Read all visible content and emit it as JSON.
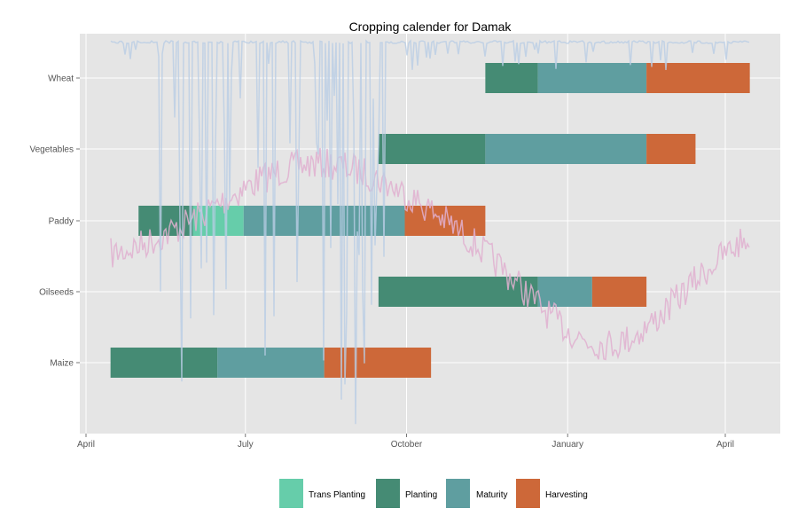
{
  "chart_data": {
    "type": "bar",
    "subtype": "gantt",
    "title": "Cropping calender for Damak",
    "xlabel": "",
    "ylabel": "",
    "x_ticks": [
      "April",
      "July",
      "October",
      "January",
      "April"
    ],
    "x_tick_dates": [
      "2013-04-01",
      "2013-07-01",
      "2013-10-01",
      "2014-01-01",
      "2014-04-01"
    ],
    "xlim": [
      "2013-03-20",
      "2014-05-01"
    ],
    "categories": [
      "Wheat",
      "Vegetables",
      "Paddy",
      "Oilseeds",
      "Maize"
    ],
    "phases": [
      {
        "name": "Trans Planting",
        "color": "#66CDAA"
      },
      {
        "name": "Planting",
        "color": "#458B74"
      },
      {
        "name": "Maturity",
        "color": "#5F9EA0"
      },
      {
        "name": "Harvesting",
        "color": "#CD6839"
      }
    ],
    "tasks": [
      {
        "crop": "Wheat",
        "phase": "Planting",
        "start": "2013-11-15",
        "end": "2013-12-15"
      },
      {
        "crop": "Wheat",
        "phase": "Maturity",
        "start": "2013-12-15",
        "end": "2014-02-15"
      },
      {
        "crop": "Wheat",
        "phase": "Harvesting",
        "start": "2014-02-15",
        "end": "2014-04-15"
      },
      {
        "crop": "Vegetables",
        "phase": "Planting",
        "start": "2013-09-15",
        "end": "2013-11-15"
      },
      {
        "crop": "Vegetables",
        "phase": "Maturity",
        "start": "2013-11-15",
        "end": "2014-02-15"
      },
      {
        "crop": "Vegetables",
        "phase": "Harvesting",
        "start": "2014-02-15",
        "end": "2014-03-15"
      },
      {
        "crop": "Paddy",
        "phase": "Planting",
        "start": "2013-05-01",
        "end": "2013-06-01"
      },
      {
        "crop": "Paddy",
        "phase": "Trans Planting",
        "start": "2013-06-01",
        "end": "2013-06-30"
      },
      {
        "crop": "Paddy",
        "phase": "Maturity",
        "start": "2013-06-30",
        "end": "2013-09-30"
      },
      {
        "crop": "Paddy",
        "phase": "Harvesting",
        "start": "2013-09-30",
        "end": "2013-11-15"
      },
      {
        "crop": "Oilseeds",
        "phase": "Planting",
        "start": "2013-09-15",
        "end": "2013-12-15"
      },
      {
        "crop": "Oilseeds",
        "phase": "Maturity",
        "start": "2013-12-15",
        "end": "2014-01-15"
      },
      {
        "crop": "Oilseeds",
        "phase": "Harvesting",
        "start": "2014-01-15",
        "end": "2014-02-15"
      },
      {
        "crop": "Maize",
        "phase": "Planting",
        "start": "2013-04-15",
        "end": "2013-06-15"
      },
      {
        "crop": "Maize",
        "phase": "Maturity",
        "start": "2013-06-15",
        "end": "2013-08-15"
      },
      {
        "crop": "Maize",
        "phase": "Harvesting",
        "start": "2013-08-15",
        "end": "2013-10-15"
      }
    ],
    "overlay_lines": [
      {
        "color": "#B9CDE5",
        "style": "spiky, mostly near top with deep drops Jun–Sep"
      },
      {
        "color": "#E0B0D0",
        "style": "noisy seasonal curve, peak Jun–Sep, trough Jan–Feb"
      }
    ],
    "legend": {
      "position": "bottom",
      "entries": [
        "Trans Planting",
        "Planting",
        "Maturity",
        "Harvesting"
      ]
    },
    "grid": true,
    "panel_background": "#E5E5E5"
  }
}
